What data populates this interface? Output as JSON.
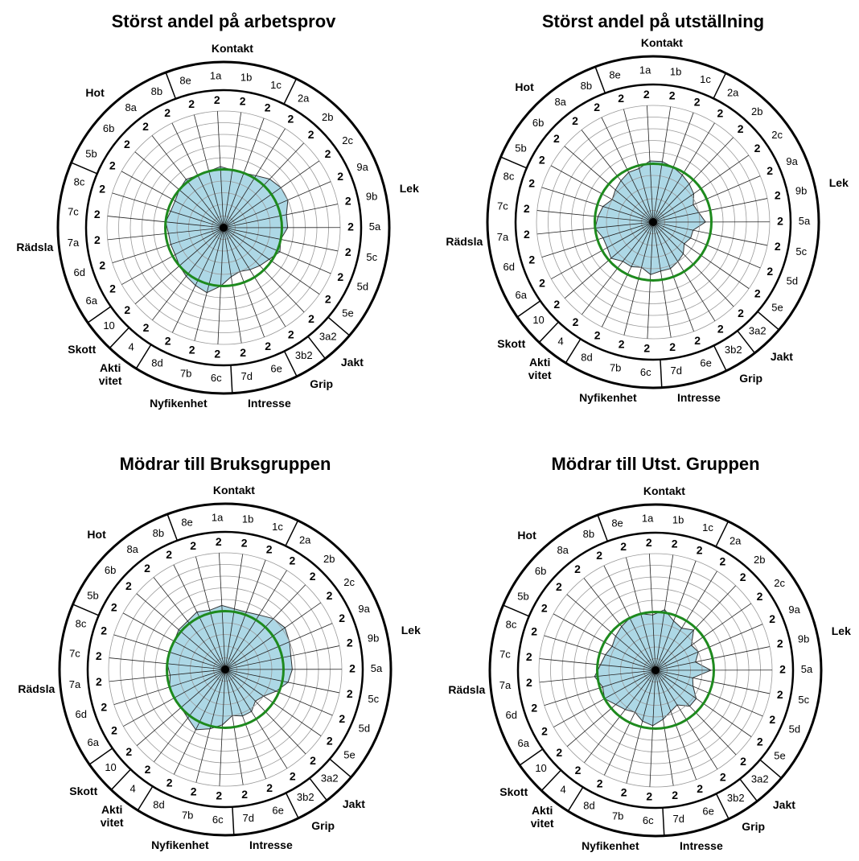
{
  "chart_data": [
    {
      "type": "radar",
      "title": "Störst andel på arbetsprov",
      "categories": [
        "8e",
        "1a",
        "1b",
        "1c",
        "2a",
        "2b",
        "2c",
        "9a",
        "9b",
        "5a",
        "5c",
        "5d",
        "5e",
        "3a2",
        "3b2",
        "6e",
        "7d",
        "6c",
        "7b",
        "8d",
        "4",
        "10",
        "6a",
        "6d",
        "7a",
        "7c",
        "8c",
        "5b",
        "6b",
        "8a",
        "8b"
      ],
      "groups": [
        {
          "label": "Kontakt",
          "size": 4
        },
        {
          "label": "Lek",
          "size": 9
        },
        {
          "label": "Jakt",
          "size": 1
        },
        {
          "label": "Grip",
          "size": 1
        },
        {
          "label": "Intresse",
          "size": 2
        },
        {
          "label": "Nyfikenhet",
          "size": 3
        },
        {
          "label": "Akti vitet",
          "size": 1
        },
        {
          "label": "Skott",
          "size": 1
        },
        {
          "label": "Rädsla",
          "size": 5
        },
        {
          "label": "Hot",
          "size": 4
        }
      ],
      "values": [
        1.0,
        1.05,
        1.0,
        1.0,
        1.05,
        1.15,
        1.2,
        1.2,
        1.1,
        1.1,
        1.0,
        1.05,
        0.95,
        0.9,
        0.85,
        0.8,
        0.85,
        1.0,
        1.15,
        1.1,
        1.05,
        1.0,
        0.95,
        0.95,
        0.95,
        1.0,
        0.95,
        0.95,
        1.0,
        1.05,
        1.0
      ],
      "rlim": [
        0,
        2
      ],
      "rticks": [
        0.2,
        0.4,
        0.6,
        0.8,
        1.0,
        1.2,
        1.4,
        1.6,
        1.8,
        2.0
      ],
      "reference": 1,
      "reference_color": "#1e8a1e",
      "color": "#add8e6",
      "grid": true
    },
    {
      "type": "radar",
      "title": "Störst andel på utställning",
      "categories": [
        "8e",
        "1a",
        "1b",
        "1c",
        "2a",
        "2b",
        "2c",
        "9a",
        "9b",
        "5a",
        "5c",
        "5d",
        "5e",
        "3a2",
        "3b2",
        "6e",
        "7d",
        "6c",
        "7b",
        "8d",
        "4",
        "10",
        "6a",
        "6d",
        "7a",
        "7c",
        "8c",
        "5b",
        "6b",
        "8a",
        "8b"
      ],
      "groups": [
        {
          "label": "Kontakt",
          "size": 4
        },
        {
          "label": "Lek",
          "size": 9
        },
        {
          "label": "Jakt",
          "size": 1
        },
        {
          "label": "Grip",
          "size": 1
        },
        {
          "label": "Intresse",
          "size": 2
        },
        {
          "label": "Nyfikenhet",
          "size": 3
        },
        {
          "label": "Akti vitet",
          "size": 1
        },
        {
          "label": "Skott",
          "size": 1
        },
        {
          "label": "Rädsla",
          "size": 5
        },
        {
          "label": "Hot",
          "size": 4
        }
      ],
      "values": [
        0.95,
        1.05,
        1.05,
        1.0,
        0.95,
        0.9,
        0.85,
        0.75,
        0.8,
        0.9,
        0.7,
        0.7,
        0.65,
        0.75,
        0.8,
        0.85,
        0.85,
        0.9,
        0.8,
        0.85,
        0.85,
        0.95,
        0.9,
        0.9,
        1.0,
        0.95,
        0.9,
        0.8,
        0.85,
        0.9,
        0.95
      ],
      "rlim": [
        0,
        2
      ],
      "rticks": [
        0.2,
        0.4,
        0.6,
        0.8,
        1.0,
        1.2,
        1.4,
        1.6,
        1.8,
        2.0
      ],
      "reference": 1,
      "reference_color": "#1e8a1e",
      "color": "#add8e6",
      "grid": true
    },
    {
      "type": "radar",
      "title": "Mödrar till Bruksgruppen",
      "categories": [
        "8e",
        "1a",
        "1b",
        "1c",
        "2a",
        "2b",
        "2c",
        "9a",
        "9b",
        "5a",
        "5c",
        "5d",
        "5e",
        "3a2",
        "3b2",
        "6e",
        "7d",
        "6c",
        "7b",
        "8d",
        "4",
        "10",
        "6a",
        "6d",
        "7a",
        "7c",
        "8c",
        "5b",
        "6b",
        "8a",
        "8b"
      ],
      "groups": [
        {
          "label": "Kontakt",
          "size": 4
        },
        {
          "label": "Lek",
          "size": 9
        },
        {
          "label": "Jakt",
          "size": 1
        },
        {
          "label": "Grip",
          "size": 1
        },
        {
          "label": "Intresse",
          "size": 2
        },
        {
          "label": "Nyfikenhet",
          "size": 3
        },
        {
          "label": "Akti vitet",
          "size": 1
        },
        {
          "label": "Skott",
          "size": 1
        },
        {
          "label": "Rädsla",
          "size": 5
        },
        {
          "label": "Hot",
          "size": 4
        }
      ],
      "values": [
        1.05,
        1.1,
        1.05,
        1.05,
        1.1,
        1.2,
        1.25,
        1.2,
        1.15,
        1.15,
        1.1,
        0.95,
        0.8,
        0.75,
        0.85,
        0.85,
        0.8,
        0.95,
        1.05,
        1.15,
        1.05,
        1.0,
        1.0,
        1.0,
        0.95,
        1.0,
        1.0,
        1.0,
        1.05,
        1.05,
        1.1
      ],
      "rlim": [
        0,
        2
      ],
      "rticks": [
        0.2,
        0.4,
        0.6,
        0.8,
        1.0,
        1.2,
        1.4,
        1.6,
        1.8,
        2.0
      ],
      "reference": 1,
      "reference_color": "#1e8a1e",
      "color": "#add8e6",
      "grid": true
    },
    {
      "type": "radar",
      "title": "Mödrar till Utst. Gruppen",
      "categories": [
        "8e",
        "1a",
        "1b",
        "1c",
        "2a",
        "2b",
        "2c",
        "9a",
        "9b",
        "5a",
        "5c",
        "5d",
        "5e",
        "3a2",
        "3b2",
        "6e",
        "7d",
        "6c",
        "7b",
        "8d",
        "4",
        "10",
        "6a",
        "6d",
        "7a",
        "7c",
        "8c",
        "5b",
        "6b",
        "8a",
        "8b"
      ],
      "groups": [
        {
          "label": "Kontakt",
          "size": 4
        },
        {
          "label": "Lek",
          "size": 9
        },
        {
          "label": "Jakt",
          "size": 1
        },
        {
          "label": "Grip",
          "size": 1
        },
        {
          "label": "Intresse",
          "size": 2
        },
        {
          "label": "Nyfikenhet",
          "size": 3
        },
        {
          "label": "Akti vitet",
          "size": 1
        },
        {
          "label": "Skott",
          "size": 1
        },
        {
          "label": "Rädsla",
          "size": 5
        },
        {
          "label": "Hot",
          "size": 4
        }
      ],
      "values": [
        1.0,
        0.95,
        1.05,
        0.9,
        0.85,
        0.95,
        0.75,
        0.8,
        0.7,
        0.95,
        0.65,
        0.7,
        0.85,
        0.85,
        0.7,
        0.75,
        0.85,
        0.95,
        0.9,
        0.8,
        0.85,
        0.9,
        1.0,
        0.95,
        1.05,
        0.95,
        0.9,
        0.85,
        0.9,
        0.95,
        1.0
      ],
      "rlim": [
        0,
        2
      ],
      "rticks": [
        0.2,
        0.4,
        0.6,
        0.8,
        1.0,
        1.2,
        1.4,
        1.6,
        1.8,
        2.0
      ],
      "reference": 1,
      "reference_color": "#1e8a1e",
      "color": "#add8e6",
      "grid": true
    }
  ]
}
